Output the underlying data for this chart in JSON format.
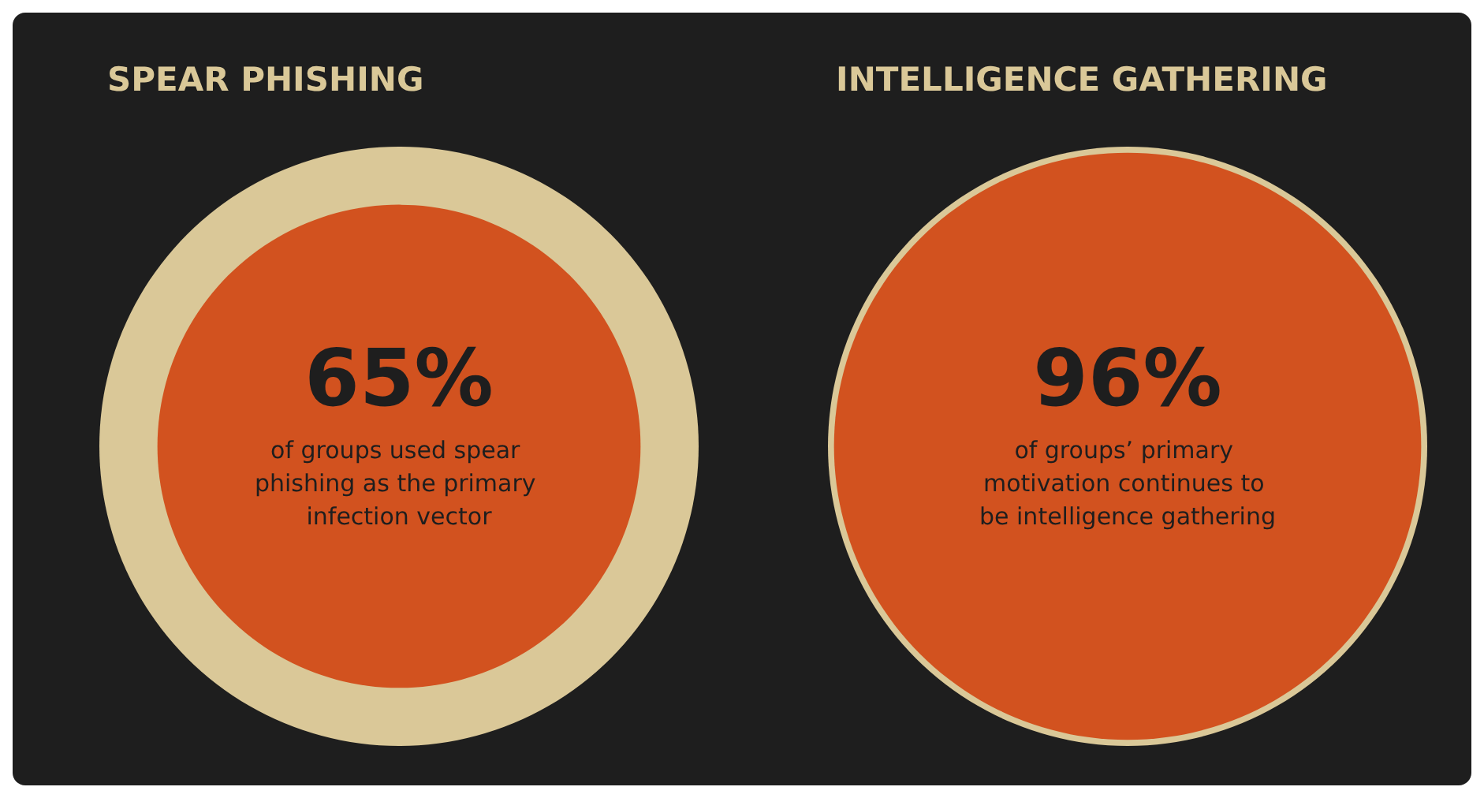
{
  "chart_data": [
    {
      "type": "other",
      "title": "SPEAR PHISHING",
      "values": [
        65
      ],
      "value_labels": [
        "65%"
      ],
      "color": "#d2521f",
      "annotations": [
        "of groups used spear phishing as the primary infection vector"
      ]
    },
    {
      "type": "other",
      "title": "INTELLIGENCE GATHERING",
      "values": [
        96
      ],
      "value_labels": [
        "96%"
      ],
      "color": "#d2521f",
      "annotations": [
        "of groups’ primary motivation continues to be intelligence gathering"
      ]
    }
  ]
}
